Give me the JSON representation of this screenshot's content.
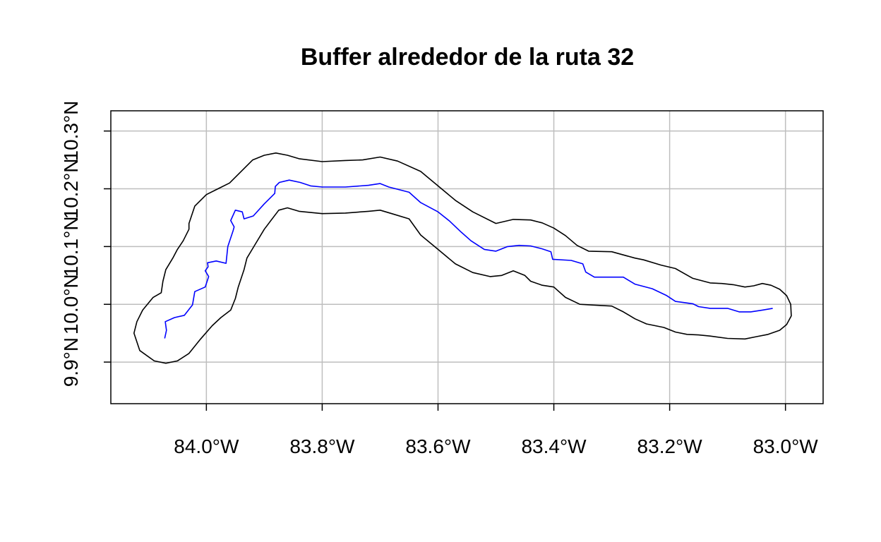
{
  "chart_data": {
    "type": "map",
    "title": "Buffer alrededor de la ruta 32",
    "graticule": true,
    "x_ticks": [
      {
        "value": -84.0,
        "label": "84.0°W"
      },
      {
        "value": -83.8,
        "label": "83.8°W"
      },
      {
        "value": -83.6,
        "label": "83.6°W"
      },
      {
        "value": -83.4,
        "label": "83.4°W"
      },
      {
        "value": -83.2,
        "label": "83.2°W"
      },
      {
        "value": -83.0,
        "label": "83.0°W"
      }
    ],
    "y_ticks": [
      {
        "value": 9.9,
        "label": "9.9°N"
      },
      {
        "value": 10.0,
        "label": "10.0°N"
      },
      {
        "value": 10.1,
        "label": "10.1°N"
      },
      {
        "value": 10.2,
        "label": "10.2°N"
      },
      {
        "value": 10.3,
        "label": "10.3°N"
      }
    ],
    "xlim": [
      -84.165,
      -82.935
    ],
    "ylim": [
      9.828,
      10.335
    ],
    "series": [
      {
        "kind": "route",
        "color": "#0000FF",
        "points": [
          [
            -84.072,
            9.941
          ],
          [
            -84.069,
            9.955
          ],
          [
            -84.071,
            9.97
          ],
          [
            -84.055,
            9.977
          ],
          [
            -84.038,
            9.981
          ],
          [
            -84.024,
            9.999
          ],
          [
            -84.02,
            10.022
          ],
          [
            -84.002,
            10.03
          ],
          [
            -83.996,
            10.048
          ],
          [
            -84.002,
            10.058
          ],
          [
            -83.997,
            10.065
          ],
          [
            -83.998,
            10.072
          ],
          [
            -83.983,
            10.075
          ],
          [
            -83.966,
            10.071
          ],
          [
            -83.963,
            10.1
          ],
          [
            -83.954,
            10.127
          ],
          [
            -83.952,
            10.134
          ],
          [
            -83.958,
            10.145
          ],
          [
            -83.95,
            10.163
          ],
          [
            -83.938,
            10.16
          ],
          [
            -83.935,
            10.148
          ],
          [
            -83.919,
            10.153
          ],
          [
            -83.9,
            10.174
          ],
          [
            -83.882,
            10.192
          ],
          [
            -83.881,
            10.204
          ],
          [
            -83.874,
            10.211
          ],
          [
            -83.857,
            10.215
          ],
          [
            -83.838,
            10.211
          ],
          [
            -83.82,
            10.205
          ],
          [
            -83.8,
            10.203
          ],
          [
            -83.76,
            10.203
          ],
          [
            -83.72,
            10.206
          ],
          [
            -83.7,
            10.209
          ],
          [
            -83.685,
            10.203
          ],
          [
            -83.65,
            10.194
          ],
          [
            -83.63,
            10.176
          ],
          [
            -83.6,
            10.16
          ],
          [
            -83.58,
            10.144
          ],
          [
            -83.56,
            10.125
          ],
          [
            -83.543,
            10.11
          ],
          [
            -83.52,
            10.095
          ],
          [
            -83.5,
            10.092
          ],
          [
            -83.48,
            10.1
          ],
          [
            -83.46,
            10.102
          ],
          [
            -83.44,
            10.101
          ],
          [
            -83.42,
            10.096
          ],
          [
            -83.405,
            10.091
          ],
          [
            -83.402,
            10.078
          ],
          [
            -83.37,
            10.076
          ],
          [
            -83.35,
            10.07
          ],
          [
            -83.345,
            10.056
          ],
          [
            -83.33,
            10.047
          ],
          [
            -83.28,
            10.047
          ],
          [
            -83.26,
            10.035
          ],
          [
            -83.23,
            10.027
          ],
          [
            -83.205,
            10.015
          ],
          [
            -83.19,
            10.005
          ],
          [
            -83.16,
            10.001
          ],
          [
            -83.15,
            9.996
          ],
          [
            -83.13,
            9.993
          ],
          [
            -83.1,
            9.993
          ],
          [
            -83.08,
            9.987
          ],
          [
            -83.06,
            9.987
          ],
          [
            -83.04,
            9.99
          ],
          [
            -83.022,
            9.993
          ]
        ]
      },
      {
        "kind": "buffer",
        "color": "#000000",
        "points": [
          [
            -84.03,
            9.915
          ],
          [
            -84.01,
            9.94
          ],
          [
            -83.99,
            9.963
          ],
          [
            -83.975,
            9.977
          ],
          [
            -83.958,
            9.99
          ],
          [
            -83.95,
            10.01
          ],
          [
            -83.945,
            10.03
          ],
          [
            -83.935,
            10.06
          ],
          [
            -83.93,
            10.08
          ],
          [
            -83.918,
            10.1
          ],
          [
            -83.9,
            10.13
          ],
          [
            -83.875,
            10.163
          ],
          [
            -83.86,
            10.167
          ],
          [
            -83.84,
            10.161
          ],
          [
            -83.8,
            10.157
          ],
          [
            -83.76,
            10.158
          ],
          [
            -83.72,
            10.161
          ],
          [
            -83.7,
            10.163
          ],
          [
            -83.68,
            10.157
          ],
          [
            -83.65,
            10.148
          ],
          [
            -83.63,
            10.12
          ],
          [
            -83.6,
            10.095
          ],
          [
            -83.57,
            10.07
          ],
          [
            -83.54,
            10.055
          ],
          [
            -83.51,
            10.048
          ],
          [
            -83.49,
            10.05
          ],
          [
            -83.47,
            10.058
          ],
          [
            -83.45,
            10.05
          ],
          [
            -83.44,
            10.04
          ],
          [
            -83.42,
            10.033
          ],
          [
            -83.4,
            10.03
          ],
          [
            -83.38,
            10.012
          ],
          [
            -83.355,
            10.0
          ],
          [
            -83.32,
            9.998
          ],
          [
            -83.3,
            9.997
          ],
          [
            -83.28,
            9.987
          ],
          [
            -83.26,
            9.975
          ],
          [
            -83.24,
            9.966
          ],
          [
            -83.21,
            9.96
          ],
          [
            -83.19,
            9.952
          ],
          [
            -83.17,
            9.948
          ],
          [
            -83.15,
            9.947
          ],
          [
            -83.13,
            9.945
          ],
          [
            -83.1,
            9.941
          ],
          [
            -83.07,
            9.94
          ],
          [
            -83.05,
            9.944
          ],
          [
            -83.03,
            9.948
          ],
          [
            -83.01,
            9.955
          ],
          [
            -82.998,
            9.965
          ],
          [
            -82.99,
            9.98
          ],
          [
            -82.991,
            10.0
          ],
          [
            -82.998,
            10.015
          ],
          [
            -83.01,
            10.026
          ],
          [
            -83.025,
            10.033
          ],
          [
            -83.04,
            10.036
          ],
          [
            -83.055,
            10.032
          ],
          [
            -83.07,
            10.03
          ],
          [
            -83.09,
            10.034
          ],
          [
            -83.11,
            10.036
          ],
          [
            -83.13,
            10.037
          ],
          [
            -83.16,
            10.045
          ],
          [
            -83.19,
            10.062
          ],
          [
            -83.215,
            10.068
          ],
          [
            -83.245,
            10.077
          ],
          [
            -83.26,
            10.08
          ],
          [
            -83.3,
            10.091
          ],
          [
            -83.34,
            10.092
          ],
          [
            -83.36,
            10.102
          ],
          [
            -83.38,
            10.119
          ],
          [
            -83.4,
            10.132
          ],
          [
            -83.42,
            10.141
          ],
          [
            -83.44,
            10.146
          ],
          [
            -83.47,
            10.147
          ],
          [
            -83.5,
            10.14
          ],
          [
            -83.54,
            10.16
          ],
          [
            -83.57,
            10.18
          ],
          [
            -83.6,
            10.205
          ],
          [
            -83.63,
            10.23
          ],
          [
            -83.67,
            10.248
          ],
          [
            -83.7,
            10.255
          ],
          [
            -83.73,
            10.25
          ],
          [
            -83.76,
            10.249
          ],
          [
            -83.8,
            10.247
          ],
          [
            -83.84,
            10.252
          ],
          [
            -83.86,
            10.258
          ],
          [
            -83.88,
            10.262
          ],
          [
            -83.9,
            10.258
          ],
          [
            -83.92,
            10.25
          ],
          [
            -83.94,
            10.23
          ],
          [
            -83.96,
            10.21
          ],
          [
            -83.98,
            10.2
          ],
          [
            -84.0,
            10.19
          ],
          [
            -84.02,
            10.17
          ],
          [
            -84.03,
            10.14
          ],
          [
            -84.03,
            10.13
          ],
          [
            -84.04,
            10.11
          ],
          [
            -84.05,
            10.095
          ],
          [
            -84.058,
            10.08
          ],
          [
            -84.07,
            10.06
          ],
          [
            -84.075,
            10.04
          ],
          [
            -84.078,
            10.02
          ],
          [
            -84.092,
            10.012
          ],
          [
            -84.11,
            9.99
          ],
          [
            -84.12,
            9.97
          ],
          [
            -84.125,
            9.95
          ],
          [
            -84.115,
            9.92
          ],
          [
            -84.09,
            9.902
          ],
          [
            -84.07,
            9.898
          ],
          [
            -84.05,
            9.902
          ],
          [
            -84.03,
            9.915
          ]
        ]
      }
    ]
  }
}
